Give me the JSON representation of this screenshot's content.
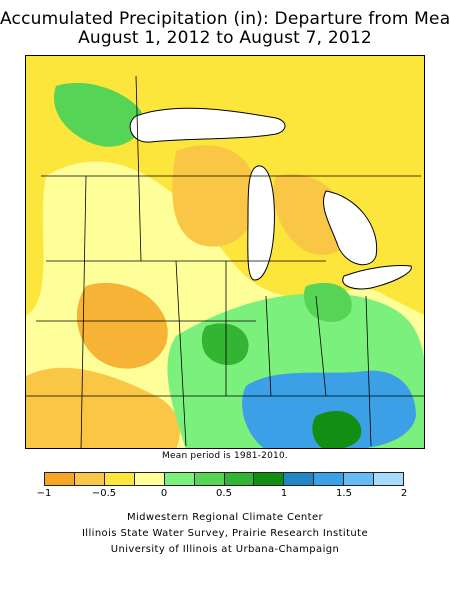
{
  "title": {
    "line1": "Accumulated Precipitation (in): Departure from Mean",
    "line2": "August 1, 2012 to August 7, 2012"
  },
  "map": {
    "region": "Midwestern United States",
    "variable": "precipitation departure from mean (in)"
  },
  "note": "Mean period is 1981-2010.",
  "legend": {
    "bins": [
      {
        "range": [
          -1.0,
          -0.75
        ],
        "color": "#f5a623"
      },
      {
        "range": [
          -0.75,
          -0.5
        ],
        "color": "#f9c745"
      },
      {
        "range": [
          -0.5,
          -0.25
        ],
        "color": "#fde63c"
      },
      {
        "range": [
          -0.25,
          0.0
        ],
        "color": "#ffff99"
      },
      {
        "range": [
          0.0,
          0.25
        ],
        "color": "#7cf07c"
      },
      {
        "range": [
          0.25,
          0.5
        ],
        "color": "#55d455"
      },
      {
        "range": [
          0.5,
          0.75
        ],
        "color": "#33b533"
      },
      {
        "range": [
          0.75,
          1.0
        ],
        "color": "#128f12"
      },
      {
        "range": [
          1.0,
          1.25
        ],
        "color": "#1f87c4"
      },
      {
        "range": [
          1.25,
          1.5
        ],
        "color": "#3ca0e6"
      },
      {
        "range": [
          1.5,
          1.75
        ],
        "color": "#66bcf2"
      },
      {
        "range": [
          1.75,
          2.0
        ],
        "color": "#a6dcf9"
      }
    ],
    "tick_labels": [
      "−1",
      "−0.5",
      "0",
      "0.5",
      "1",
      "1.5",
      "2"
    ]
  },
  "credits": {
    "line1": "Midwestern Regional Climate Center",
    "line2": "Illinois State Water Survey, Prairie Research Institute",
    "line3": "University of Illinois at Urbana-Champaign"
  }
}
